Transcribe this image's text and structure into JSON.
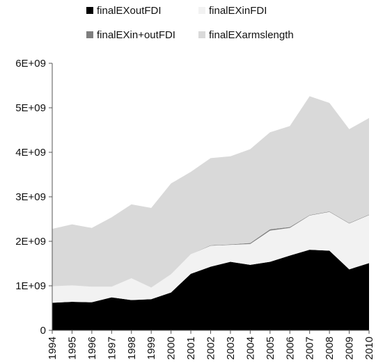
{
  "chart_data": {
    "type": "area",
    "stacked": true,
    "title": "",
    "xlabel": "",
    "ylabel": "",
    "x": [
      "1994",
      "1995",
      "1996",
      "1997",
      "1998",
      "1999",
      "2000",
      "2001",
      "2002",
      "2003",
      "2004",
      "2005",
      "2006",
      "2007",
      "2008",
      "2009",
      "2010"
    ],
    "ylim": [
      0,
      6000000000
    ],
    "yticks": [
      0,
      1000000000,
      2000000000,
      3000000000,
      4000000000,
      5000000000,
      6000000000
    ],
    "ytick_labels": [
      "0",
      "1E+09",
      "2E+09",
      "3E+09",
      "4E+09",
      "5E+09",
      "6E+09"
    ],
    "grid": false,
    "legend_position": "top",
    "series": [
      {
        "name": "finalEXoutFDI",
        "color": "#000000",
        "values": [
          620000000,
          640000000,
          630000000,
          740000000,
          680000000,
          700000000,
          850000000,
          1270000000,
          1430000000,
          1540000000,
          1470000000,
          1540000000,
          1680000000,
          1810000000,
          1790000000,
          1370000000,
          1510000000
        ]
      },
      {
        "name": "finalEXinFDI",
        "color": "#f2f2f2",
        "values": [
          370000000,
          370000000,
          350000000,
          240000000,
          490000000,
          260000000,
          410000000,
          440000000,
          470000000,
          380000000,
          470000000,
          700000000,
          620000000,
          770000000,
          870000000,
          1030000000,
          1080000000
        ]
      },
      {
        "name": "finalEXin+outFDI",
        "color": "#7f7f7f",
        "values": [
          0,
          0,
          0,
          0,
          0,
          0,
          0,
          0,
          10000000,
          10000000,
          20000000,
          30000000,
          20000000,
          10000000,
          10000000,
          10000000,
          10000000
        ]
      },
      {
        "name": "finalEXarmslength",
        "color": "#d9d9d9",
        "values": [
          1290000000,
          1370000000,
          1320000000,
          1560000000,
          1660000000,
          1790000000,
          2040000000,
          1850000000,
          1960000000,
          1980000000,
          2110000000,
          2180000000,
          2270000000,
          2670000000,
          2440000000,
          2110000000,
          2170000000
        ]
      }
    ]
  }
}
